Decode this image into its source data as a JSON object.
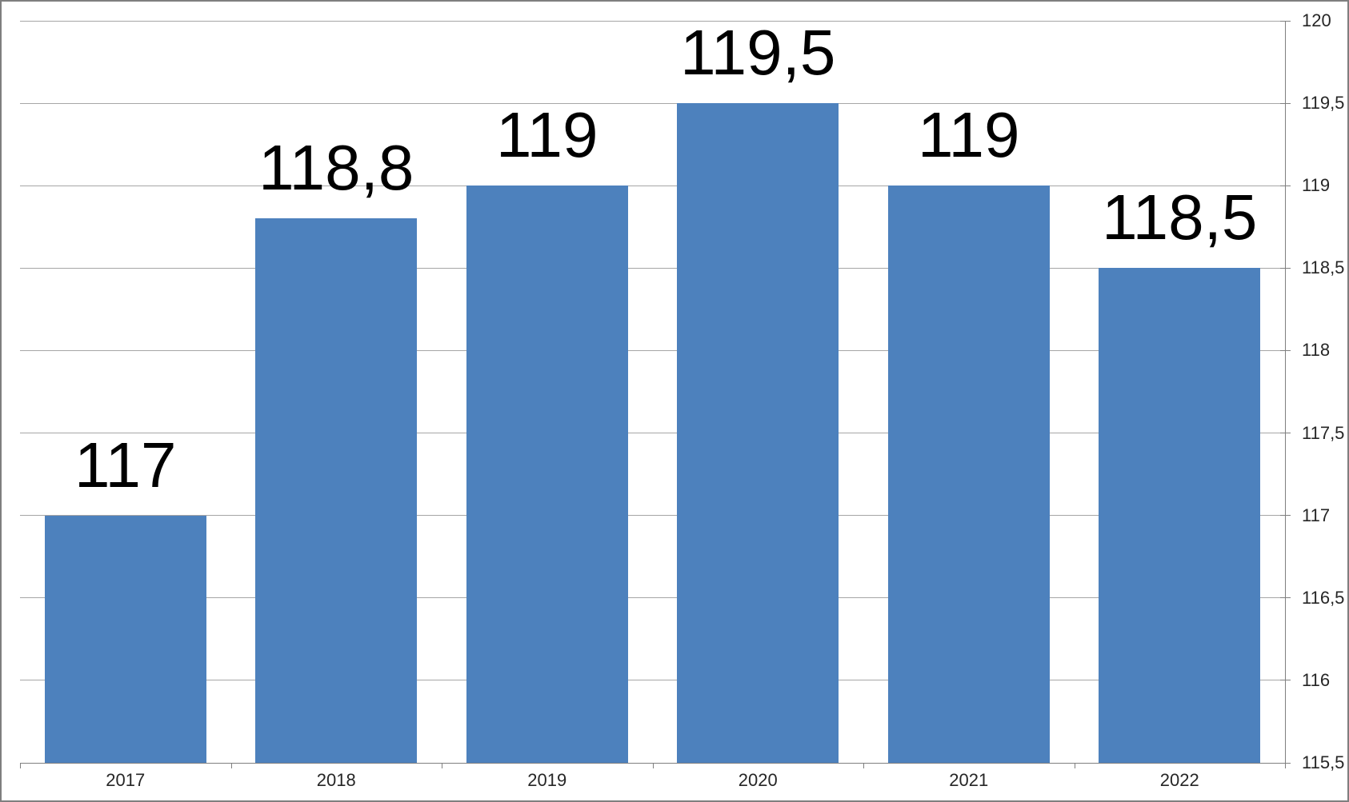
{
  "chart_data": {
    "type": "bar",
    "title": "",
    "xlabel": "",
    "ylabel": "",
    "categories": [
      "2017",
      "2018",
      "2019",
      "2020",
      "2021",
      "2022"
    ],
    "values": [
      117,
      118.8,
      119,
      119.5,
      119,
      118.5
    ],
    "bar_labels": [
      "117",
      "118,8",
      "119",
      "119,5",
      "119",
      "118,5"
    ],
    "series_name": "",
    "legend": "none",
    "grid": true,
    "y_axis_side": "right",
    "decimal_separator": ",",
    "ylim": [
      115.5,
      120
    ],
    "ytick_step": 0.5,
    "yticks": [
      115.5,
      116,
      116.5,
      117,
      117.5,
      118,
      118.5,
      119,
      119.5,
      120
    ],
    "ytick_labels": [
      "115,5",
      "116",
      "116,5",
      "117",
      "117,5",
      "118",
      "118,5",
      "119",
      "119,5",
      "120"
    ],
    "colors": {
      "bar": "#4D81BD",
      "gridline": "#a6a6a6",
      "axis": "#7f7f7f",
      "data_label": "#000000",
      "tick_label": "#262626",
      "background": "#ffffff",
      "frame_border": "#7f7f7f"
    }
  }
}
